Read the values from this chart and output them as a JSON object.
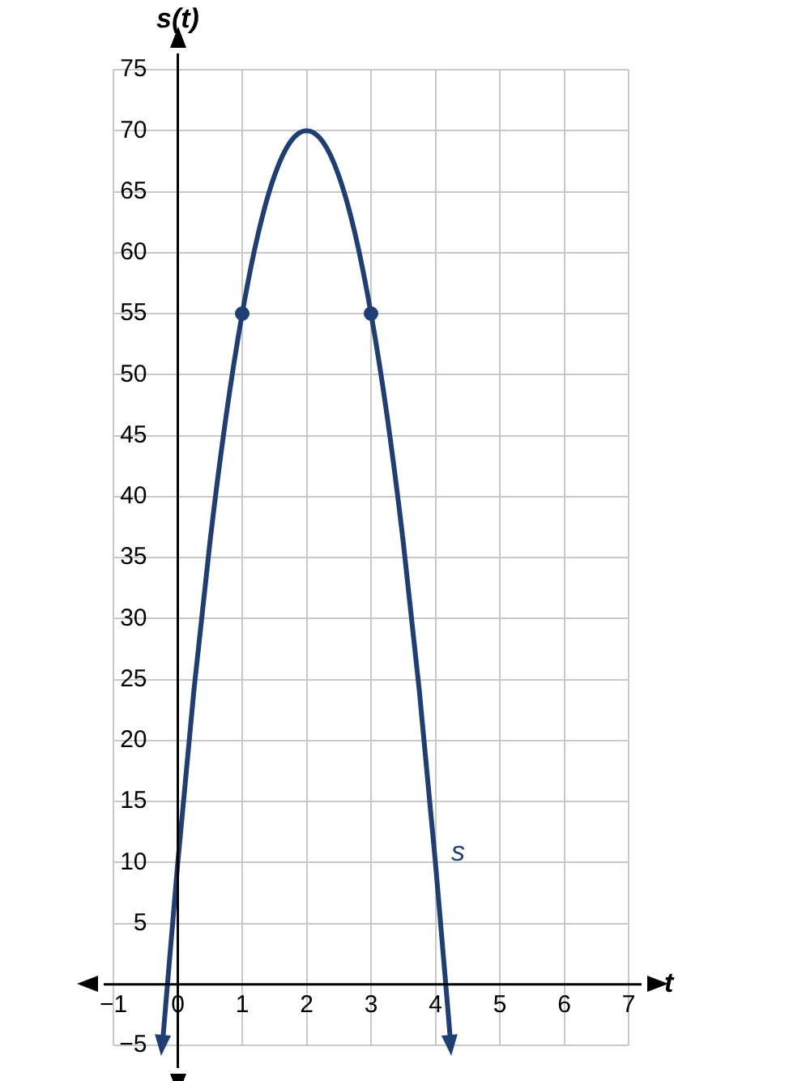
{
  "chart_data": {
    "type": "line",
    "xlabel": "t",
    "ylabel": "s(t)",
    "series": [
      {
        "color": "#1f3f74",
        "marker": "none",
        "x": [
          -0.24,
          0,
          0.25,
          0.5,
          0.75,
          1,
          1.25,
          1.5,
          1.75,
          2,
          2.25,
          2.5,
          2.75,
          3,
          3.25,
          3.5,
          3.75,
          4,
          4.24
        ],
        "values": [
          -5,
          10,
          24.1,
          36.3,
          46.6,
          55,
          61.6,
          66.3,
          69.1,
          70,
          69.1,
          66.3,
          61.6,
          55,
          46.6,
          36.3,
          24.1,
          10,
          -5
        ]
      },
      {
        "type": "scatter",
        "color": "#1f3f74",
        "marker": "circle",
        "x": [
          1,
          3
        ],
        "values": [
          55,
          55
        ]
      }
    ],
    "annotations": [
      "s"
    ],
    "xlim": [
      -1,
      7
    ],
    "ylim": [
      -5,
      75
    ],
    "xticks": [
      {
        "value": -1,
        "label": "−1"
      },
      0,
      1,
      2,
      3,
      4,
      5,
      6,
      7
    ],
    "yticks": [
      {
        "value": -5,
        "label": "−5"
      },
      {
        "value": 0,
        "label": null
      },
      5,
      10,
      15,
      20,
      25,
      30,
      35,
      40,
      45,
      50,
      55,
      60,
      65,
      70,
      75
    ],
    "grid": true
  }
}
